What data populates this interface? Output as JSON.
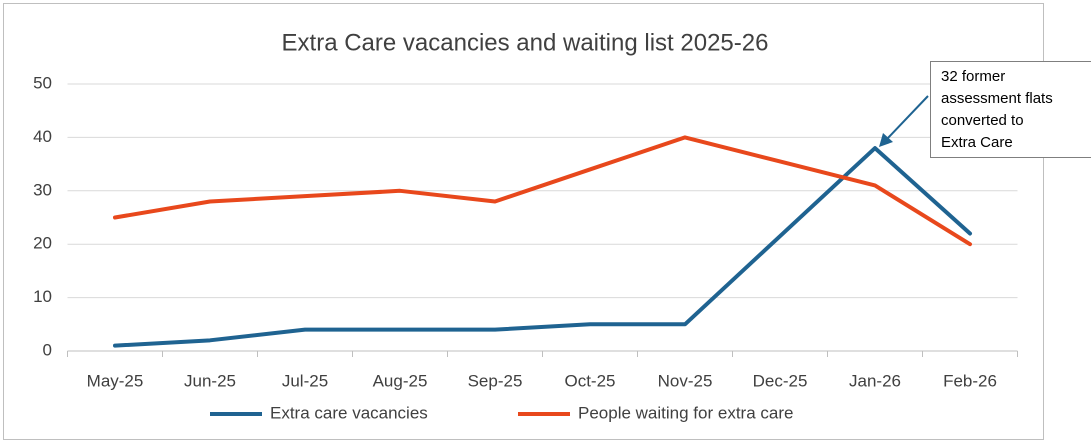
{
  "chart_data": {
    "type": "line",
    "title": "Extra Care vacancies and waiting list 2025-26",
    "categories": [
      "May-25",
      "Jun-25",
      "Jul-25",
      "Aug-25",
      "Sep-25",
      "Oct-25",
      "Nov-25",
      "Dec-25",
      "Jan-26",
      "Feb-26"
    ],
    "series": [
      {
        "name": "Extra care vacancies",
        "color": "#1f6391",
        "values": [
          1,
          2,
          4,
          4,
          4,
          5,
          5,
          21.5,
          38,
          22
        ]
      },
      {
        "name": "People waiting for extra care",
        "color": "#e8481c",
        "values": [
          25,
          28,
          29,
          30,
          28,
          34,
          40,
          35.5,
          31,
          20
        ]
      }
    ],
    "ylim": [
      0,
      50
    ],
    "yticks": [
      0,
      10,
      20,
      30,
      40,
      50
    ],
    "grid": true,
    "legend": "bottom",
    "annotation": [
      "32 former",
      "assessment flats",
      "converted to",
      "Extra Care"
    ]
  }
}
